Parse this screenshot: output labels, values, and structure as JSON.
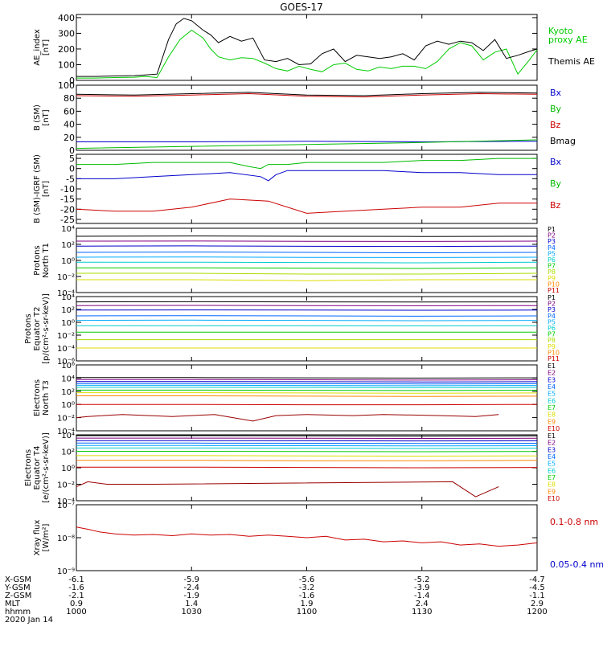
{
  "title": "GOES-17",
  "chart_data": [
    {
      "type": "line",
      "id": "ae",
      "ylabel": "AE_index",
      "yunit": "[nT]",
      "ylim": [
        0,
        420
      ],
      "log": false,
      "yticks": [
        0,
        100,
        200,
        300,
        400
      ],
      "ytick_labels": [
        "0",
        "100",
        "200",
        "300",
        "400"
      ],
      "series": [
        {
          "name": "Kyoto proxy AE",
          "color": "#00cc00",
          "label_lines": [
            "Kyoto",
            "proxy AE"
          ],
          "x": [
            0,
            5,
            10,
            15,
            18,
            21,
            24,
            27,
            30,
            33,
            35,
            37,
            40,
            43,
            46,
            49,
            52,
            55,
            58,
            61,
            64,
            67,
            70,
            73,
            76,
            79,
            82,
            85,
            88,
            91,
            94,
            97,
            100,
            103,
            106,
            109,
            112,
            115,
            118,
            120
          ],
          "values": [
            15,
            15,
            18,
            20,
            25,
            18,
            150,
            260,
            320,
            270,
            200,
            150,
            130,
            145,
            140,
            110,
            75,
            60,
            90,
            70,
            55,
            100,
            110,
            70,
            60,
            85,
            75,
            90,
            90,
            75,
            120,
            200,
            240,
            220,
            130,
            180,
            200,
            40,
            130,
            195
          ]
        },
        {
          "name": "Themis AE",
          "color": "#000000",
          "label_lines": [
            "Themis AE"
          ],
          "x": [
            0,
            5,
            10,
            15,
            18,
            21,
            24,
            26,
            28,
            30,
            33,
            35,
            37,
            40,
            43,
            46,
            49,
            52,
            55,
            58,
            61,
            64,
            67,
            70,
            73,
            76,
            79,
            82,
            85,
            88,
            91,
            94,
            97,
            100,
            103,
            106,
            109,
            112,
            115,
            118,
            120
          ],
          "values": [
            25,
            25,
            28,
            30,
            35,
            40,
            260,
            360,
            395,
            380,
            320,
            290,
            240,
            280,
            250,
            270,
            130,
            120,
            140,
            100,
            105,
            170,
            200,
            120,
            160,
            150,
            140,
            150,
            170,
            130,
            220,
            250,
            230,
            250,
            240,
            190,
            260,
            140,
            160,
            185,
            200
          ]
        }
      ]
    },
    {
      "type": "line",
      "id": "bsm",
      "ylabel": "B (SM)",
      "yunit": "[nT]",
      "ylim": [
        0,
        100
      ],
      "log": false,
      "yticks": [
        0,
        20,
        40,
        60,
        80,
        100
      ],
      "ytick_labels": [
        "0",
        "20",
        "40",
        "60",
        "80",
        "100"
      ],
      "series": [
        {
          "name": "Bx",
          "color": "#0000cc",
          "x": [
            0,
            30,
            60,
            90,
            120
          ],
          "values": [
            13,
            13,
            14,
            13,
            14
          ]
        },
        {
          "name": "By",
          "color": "#00bb00",
          "x": [
            0,
            30,
            60,
            90,
            120
          ],
          "values": [
            3,
            6,
            9,
            12,
            16
          ]
        },
        {
          "name": "Bz",
          "color": "#cc0000",
          "x": [
            0,
            15,
            30,
            45,
            60,
            75,
            90,
            105,
            120
          ],
          "values": [
            84,
            83,
            85,
            87,
            83,
            82,
            85,
            87,
            86
          ]
        },
        {
          "name": "Bmag",
          "color": "#000000",
          "x": [
            0,
            15,
            30,
            45,
            60,
            75,
            90,
            105,
            120
          ],
          "values": [
            86,
            85,
            87,
            89,
            85,
            84,
            87,
            89,
            88
          ]
        }
      ]
    },
    {
      "type": "line",
      "id": "bigrf",
      "ylabel": "B (SM)-IGRF (SM)",
      "yunit": "[nT]",
      "ylim": [
        -27,
        7
      ],
      "log": false,
      "yticks": [
        5,
        0,
        -5,
        -10,
        -15,
        -20,
        -25
      ],
      "ytick_labels": [
        "5",
        "0",
        "-5",
        "-10",
        "-15",
        "-20",
        "-25"
      ],
      "series": [
        {
          "name": "Bx",
          "color": "#0000cc",
          "x": [
            0,
            10,
            20,
            30,
            40,
            48,
            50,
            52,
            55,
            60,
            70,
            80,
            90,
            100,
            110,
            120
          ],
          "values": [
            -5,
            -5,
            -4,
            -3,
            -2,
            -4,
            -6,
            -3,
            -1,
            -1,
            -1,
            -1,
            -2,
            -2,
            -3,
            -3
          ]
        },
        {
          "name": "By",
          "color": "#00bb00",
          "x": [
            0,
            10,
            20,
            30,
            40,
            45,
            48,
            50,
            55,
            60,
            70,
            80,
            90,
            100,
            110,
            120
          ],
          "values": [
            2,
            2,
            3,
            3,
            3,
            1,
            0,
            2,
            2,
            3,
            3,
            3,
            4,
            4,
            5,
            5
          ]
        },
        {
          "name": "Bz",
          "color": "#cc0000",
          "x": [
            0,
            10,
            20,
            30,
            40,
            50,
            60,
            70,
            80,
            90,
            100,
            110,
            120
          ],
          "values": [
            -20,
            -21,
            -21,
            -19,
            -15,
            -16,
            -22,
            -21,
            -20,
            -19,
            -19,
            -17,
            -17
          ]
        }
      ]
    },
    {
      "type": "line",
      "id": "pn",
      "ylabel": "Protons",
      "ylabel2": "North T1",
      "yunit": "",
      "log": true,
      "ylim_exp": [
        -4,
        4
      ],
      "ytick_exps": [
        4,
        2,
        0,
        -2,
        -4
      ],
      "series": [
        {
          "name": "P1",
          "color": "#000000",
          "values": [
            1000,
            1100,
            1000,
            950,
            1000
          ]
        },
        {
          "name": "P2",
          "color": "#800080",
          "values": [
            250,
            260,
            240,
            230,
            250
          ]
        },
        {
          "name": "P3",
          "color": "#0000cc",
          "values": [
            60,
            65,
            58,
            55,
            60
          ]
        },
        {
          "name": "P4",
          "color": "#0066ff",
          "values": [
            10,
            11,
            10,
            9,
            10
          ]
        },
        {
          "name": "P5",
          "color": "#00aaff",
          "values": [
            2.5,
            2.7,
            2.4,
            2.3,
            2.5
          ]
        },
        {
          "name": "P6",
          "color": "#00cccc",
          "values": [
            0.6,
            0.6,
            0.55,
            0.5,
            0.6
          ]
        },
        {
          "name": "P7",
          "color": "#00cc00",
          "values": [
            0.12,
            0.12,
            0.11,
            0.1,
            0.12
          ]
        },
        {
          "name": "P8",
          "color": "#aadd00",
          "values": [
            0.025,
            0.025,
            0.02,
            0.02,
            0.025
          ]
        },
        {
          "name": "P9",
          "color": "#dddd00",
          "values": [
            0.004,
            0.004,
            0.003,
            0.004,
            0.004
          ]
        },
        {
          "name": "P10",
          "color": "#ff8800",
          "values": []
        },
        {
          "name": "P11",
          "color": "#cc0000",
          "values": []
        }
      ]
    },
    {
      "type": "line",
      "id": "pe",
      "ylabel": "Protons",
      "ylabel2": "Equator T2",
      "yunit": "[p/(cm²-s-sr-keV)]",
      "log": true,
      "ylim_exp": [
        -6,
        4
      ],
      "ytick_exps": [
        4,
        2,
        0,
        -2,
        -4,
        -6
      ],
      "series": [
        {
          "name": "P1",
          "color": "#000000",
          "values": [
            1500,
            1600,
            1500,
            1400,
            1500
          ]
        },
        {
          "name": "P2",
          "color": "#800080",
          "values": [
            400,
            420,
            400,
            380,
            400
          ]
        },
        {
          "name": "P3",
          "color": "#0000cc",
          "values": [
            80,
            85,
            80,
            75,
            80
          ]
        },
        {
          "name": "P4",
          "color": "#0066ff",
          "values": [
            10,
            11,
            10,
            9,
            10
          ]
        },
        {
          "name": "P5",
          "color": "#00aaff",
          "values": [
            2,
            2.2,
            2,
            1.8,
            2
          ]
        },
        {
          "name": "P6",
          "color": "#00cccc",
          "values": [
            0.3,
            0.3,
            0.3,
            0.28,
            0.3
          ]
        },
        {
          "name": "P7",
          "color": "#00cc00",
          "values": [
            0.03,
            0.03,
            0.03,
            0.03,
            0.03
          ]
        },
        {
          "name": "P8",
          "color": "#aadd00",
          "values": [
            0.002,
            0.002,
            0.002,
            0.002,
            0.002
          ]
        },
        {
          "name": "P9",
          "color": "#dddd00",
          "values": [
            0.0001,
            0.0001,
            0.0001,
            0.0001,
            0.0001
          ]
        },
        {
          "name": "P10",
          "color": "#ff8800",
          "values": []
        },
        {
          "name": "P11",
          "color": "#cc0000",
          "values": []
        }
      ]
    },
    {
      "type": "line",
      "id": "en",
      "ylabel": "Electrons",
      "ylabel2": "North T3",
      "yunit": "",
      "log": true,
      "ylim_exp": [
        -4,
        6
      ],
      "ytick_exps": [
        6,
        4,
        2,
        0,
        -2,
        -4
      ],
      "series": [
        {
          "name": "E1",
          "color": "#000000",
          "values": [
            12000,
            12000,
            11000,
            10000,
            11000
          ]
        },
        {
          "name": "E2",
          "color": "#800080",
          "values": [
            6000,
            6000,
            5500,
            5000,
            5500
          ]
        },
        {
          "name": "E3",
          "color": "#0000cc",
          "values": [
            3000,
            3000,
            2800,
            2600,
            2800
          ]
        },
        {
          "name": "E4",
          "color": "#0066ff",
          "values": [
            1500,
            1500,
            1400,
            1300,
            1400
          ]
        },
        {
          "name": "E5",
          "color": "#00aaff",
          "values": [
            800,
            800,
            750,
            700,
            750
          ]
        },
        {
          "name": "E6",
          "color": "#00cccc",
          "values": [
            400,
            400,
            380,
            350,
            380
          ]
        },
        {
          "name": "E7",
          "color": "#00cc00",
          "values": [
            150,
            150,
            140,
            130,
            140
          ]
        },
        {
          "name": "E8",
          "color": "#dddd00",
          "values": [
            60,
            60,
            55,
            50,
            55
          ]
        },
        {
          "name": "E9",
          "color": "#ff8800",
          "values": [
            20,
            20,
            18,
            16,
            18
          ]
        },
        {
          "name": "E10",
          "color": "#cc0000",
          "values": [
            1,
            1,
            0.9,
            0.9,
            1
          ]
        },
        {
          "name": "E10-low",
          "color": "#990000",
          "x": [
            0,
            3,
            12,
            25,
            36,
            46,
            52,
            60,
            72,
            80,
            95,
            104,
            110
          ],
          "values": [
            0.01,
            0.015,
            0.03,
            0.015,
            0.03,
            0.003,
            0.02,
            0.03,
            0.02,
            0.03,
            0.02,
            0.015,
            0.03
          ]
        }
      ]
    },
    {
      "type": "line",
      "id": "ee",
      "ylabel": "Electrons",
      "ylabel2": "Equator T4",
      "yunit": "[e/(cm²-s-sr-keV)]",
      "log": true,
      "ylim_exp": [
        -4,
        4
      ],
      "ytick_exps": [
        4,
        2,
        0,
        -2,
        -4
      ],
      "series": [
        {
          "name": "E1",
          "color": "#000000",
          "values": [
            8000,
            8000,
            7500,
            7000,
            7500
          ]
        },
        {
          "name": "E2",
          "color": "#800080",
          "values": [
            4000,
            4000,
            3800,
            3600,
            3800
          ]
        },
        {
          "name": "E3",
          "color": "#0000cc",
          "values": [
            2000,
            2000,
            1900,
            1800,
            1900
          ]
        },
        {
          "name": "E4",
          "color": "#0066ff",
          "values": [
            1000,
            1000,
            950,
            900,
            950
          ]
        },
        {
          "name": "E5",
          "color": "#00aaff",
          "values": [
            500,
            500,
            480,
            450,
            480
          ]
        },
        {
          "name": "E6",
          "color": "#00cccc",
          "values": [
            250,
            250,
            240,
            220,
            240
          ]
        },
        {
          "name": "E7",
          "color": "#00cc00",
          "values": [
            100,
            100,
            95,
            90,
            95
          ]
        },
        {
          "name": "E8",
          "color": "#dddd00",
          "values": [
            30,
            30,
            28,
            26,
            28
          ]
        },
        {
          "name": "E9",
          "color": "#ff8800",
          "values": [
            8,
            8,
            7,
            7,
            8
          ]
        },
        {
          "name": "E10",
          "color": "#cc0000",
          "values": [
            1.2,
            1.2,
            1.1,
            1.0,
            1.1
          ]
        },
        {
          "name": "E10-low",
          "color": "#990000",
          "x": [
            0,
            3,
            8,
            15,
            20,
            98,
            104,
            110
          ],
          "values": [
            0.005,
            0.02,
            0.01,
            0.01,
            0.01,
            0.02,
            0.0003,
            0.005
          ]
        }
      ]
    },
    {
      "type": "line",
      "id": "xray",
      "ylabel": "Xray flux",
      "yunit": "[W/m²]",
      "log": true,
      "ylim_exp": [
        -9,
        -7
      ],
      "ytick_exps": [
        -7,
        -8,
        -9
      ],
      "series": [
        {
          "name": "0.1-0.8 nm",
          "color": "#cc0000",
          "x": [
            0,
            3,
            6,
            10,
            15,
            20,
            25,
            30,
            35,
            40,
            45,
            50,
            55,
            60,
            65,
            70,
            75,
            80,
            85,
            90,
            95,
            100,
            105,
            110,
            115,
            120
          ],
          "values": [
            2.1e-08,
            1.8e-08,
            1.5e-08,
            1.3e-08,
            1.2e-08,
            1.25e-08,
            1.15e-08,
            1.3e-08,
            1.2e-08,
            1.25e-08,
            1.1e-08,
            1.2e-08,
            1.1e-08,
            1e-08,
            1.1e-08,
            8.5e-09,
            9e-09,
            7.5e-09,
            8e-09,
            7e-09,
            7.5e-09,
            6e-09,
            6.5e-09,
            5.5e-09,
            6e-09,
            7e-09
          ]
        },
        {
          "name": "0.05-0.4 nm",
          "color": "#0000cc",
          "x": [],
          "values": []
        }
      ]
    }
  ],
  "x_axis": {
    "ticks_minutes": [
      0,
      30,
      60,
      90,
      120
    ],
    "row_labels": [
      "X-GSM",
      "Y-GSM",
      "Z-GSM",
      "MLT",
      "hhmm"
    ],
    "rows": [
      [
        "-6.1",
        "-5.9",
        "-5.6",
        "-5.2",
        "-4.7"
      ],
      [
        "-1.6",
        "-2.4",
        "-3.2",
        "-3.9",
        "-4.5"
      ],
      [
        "-2.1",
        "-1.9",
        "-1.6",
        "-1.4",
        "-1.1"
      ],
      [
        "0.9",
        "1.4",
        "1.9",
        "2.4",
        "2.9"
      ],
      [
        "1000",
        "1030",
        "1100",
        "1130",
        "1200"
      ]
    ],
    "date": "2020 Jan 14"
  }
}
